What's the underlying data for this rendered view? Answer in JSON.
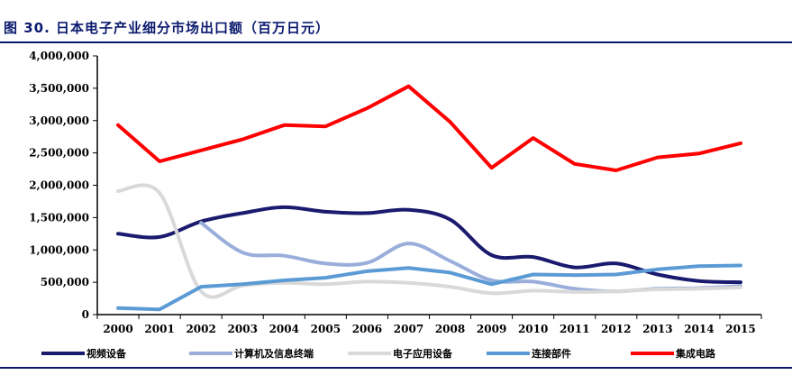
{
  "figure": {
    "title": "图 30. 日本电子产业细分市场出口额（百万日元）"
  },
  "colors": {
    "title": "#0b1a6e",
    "rule": "#0b1a6e",
    "axis": "#000000"
  },
  "chart_data": {
    "type": "line",
    "title": "",
    "xlabel": "",
    "ylabel": "",
    "categories": [
      "2000",
      "2001",
      "2002",
      "2003",
      "2004",
      "2005",
      "2006",
      "2007",
      "2008",
      "2009",
      "2010",
      "2011",
      "2012",
      "2013",
      "2014",
      "2015"
    ],
    "ylim": [
      0,
      4000000
    ],
    "yticks": [
      0,
      500000,
      1000000,
      1500000,
      2000000,
      2500000,
      3000000,
      3500000,
      4000000
    ],
    "ytick_labels": [
      "0",
      "500,000",
      "1,000,000",
      "1,500,000",
      "2,000,000",
      "2,500,000",
      "3,000,000",
      "3,500,000",
      "4,000,000"
    ],
    "grid": false,
    "legend_position": "bottom",
    "series": [
      {
        "name": "视频设备",
        "color": "#1a1a6e",
        "smooth": true,
        "values": [
          1250000,
          1200000,
          1440000,
          1570000,
          1660000,
          1590000,
          1570000,
          1620000,
          1470000,
          920000,
          890000,
          730000,
          790000,
          620000,
          520000,
          500000
        ]
      },
      {
        "name": "计算机及信息终端",
        "color": "#9aaedb",
        "smooth": true,
        "values": [
          null,
          null,
          1420000,
          960000,
          910000,
          790000,
          800000,
          1100000,
          830000,
          530000,
          510000,
          400000,
          360000,
          400000,
          410000,
          440000
        ]
      },
      {
        "name": "电子应用设备",
        "color": "#d9d9d9",
        "smooth": true,
        "values": [
          1910000,
          1880000,
          360000,
          450000,
          490000,
          470000,
          510000,
          490000,
          430000,
          330000,
          370000,
          350000,
          360000,
          390000,
          400000,
          420000
        ]
      },
      {
        "name": "连接部件",
        "color": "#5b9bd5",
        "smooth": false,
        "values": [
          100000,
          80000,
          430000,
          470000,
          530000,
          570000,
          670000,
          720000,
          650000,
          470000,
          620000,
          610000,
          620000,
          700000,
          750000,
          760000
        ]
      },
      {
        "name": "集成电路",
        "color": "#ff0000",
        "smooth": false,
        "values": [
          2930000,
          2370000,
          2540000,
          2710000,
          2930000,
          2910000,
          3190000,
          3530000,
          2980000,
          2270000,
          2730000,
          2330000,
          2230000,
          2430000,
          2490000,
          2650000
        ]
      }
    ]
  }
}
